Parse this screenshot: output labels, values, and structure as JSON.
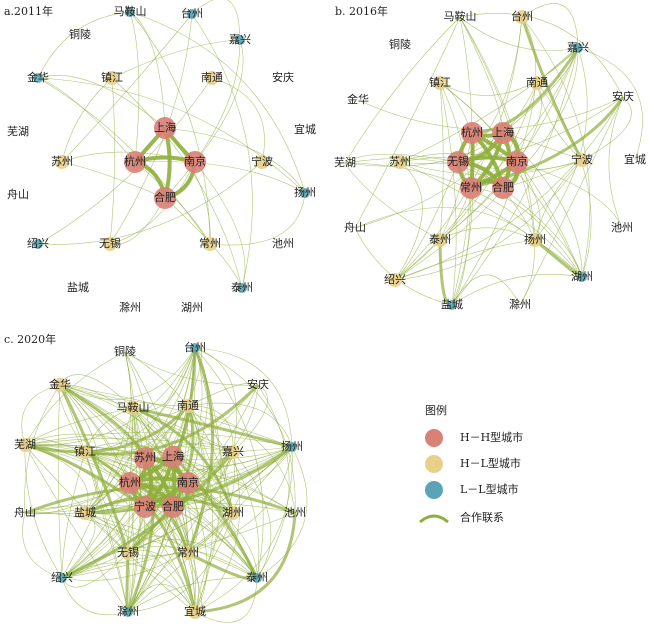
{
  "panels": [
    {
      "title": "a.2011年",
      "nodes": [
        {
          "label": "马鞍山",
          "color": "#5ba3b5"
        },
        {
          "label": "台州",
          "color": "#5ba3b5"
        },
        {
          "label": "铜陵"
        },
        {
          "label": "嘉兴",
          "color": "#5ba3b5"
        },
        {
          "label": "金华",
          "color": "#5ba3b5"
        },
        {
          "label": "镇江",
          "color": "#e8cf8a"
        },
        {
          "label": "南通",
          "color": "#e8cf8a"
        },
        {
          "label": "安庆"
        },
        {
          "label": "上海",
          "color": "#d98077"
        },
        {
          "label": "芜湖"
        },
        {
          "label": "宜城"
        },
        {
          "label": "苏州",
          "color": "#e8cf8a"
        },
        {
          "label": "杭州",
          "color": "#d98077"
        },
        {
          "label": "南京",
          "color": "#d98077"
        },
        {
          "label": "宁波",
          "color": "#e8cf8a"
        },
        {
          "label": "舟山"
        },
        {
          "label": "扬州",
          "color": "#5ba3b5"
        },
        {
          "label": "合肥",
          "color": "#d98077"
        },
        {
          "label": "绍兴",
          "color": "#5ba3b5"
        },
        {
          "label": "无锡",
          "color": "#e8cf8a"
        },
        {
          "label": "常州",
          "color": "#e8cf8a"
        },
        {
          "label": "池州"
        },
        {
          "label": "盐城"
        },
        {
          "label": "泰州",
          "color": "#5ba3b5"
        },
        {
          "label": "滁州"
        },
        {
          "label": "湖州"
        }
      ]
    },
    {
      "title": "b. 2016年",
      "nodes": [
        {
          "label": "马鞍山"
        },
        {
          "label": "台州",
          "color": "#e8cf8a"
        },
        {
          "label": "铜陵"
        },
        {
          "label": "嘉兴",
          "color": "#5ba3b5"
        },
        {
          "label": "镇江",
          "color": "#e8cf8a"
        },
        {
          "label": "南通",
          "color": "#e8cf8a"
        },
        {
          "label": "安庆"
        },
        {
          "label": "金华"
        },
        {
          "label": "杭州",
          "color": "#d98077"
        },
        {
          "label": "上海",
          "color": "#d98077"
        },
        {
          "label": "宁波",
          "color": "#e8cf8a"
        },
        {
          "label": "宜城"
        },
        {
          "label": "芜湖"
        },
        {
          "label": "苏州",
          "color": "#e8cf8a"
        },
        {
          "label": "无锡",
          "color": "#d98077"
        },
        {
          "label": "南京",
          "color": "#d98077"
        },
        {
          "label": "常州",
          "color": "#d98077"
        },
        {
          "label": "合肥",
          "color": "#d98077"
        },
        {
          "label": "舟山"
        },
        {
          "label": "池州"
        },
        {
          "label": "泰州",
          "color": "#e8cf8a"
        },
        {
          "label": "扬州",
          "color": "#e8cf8a"
        },
        {
          "label": "绍兴",
          "color": "#e8cf8a"
        },
        {
          "label": "湖州",
          "color": "#5ba3b5"
        },
        {
          "label": "盐城",
          "color": "#5ba3b5"
        },
        {
          "label": "滁州"
        }
      ]
    },
    {
      "title": "c. 2020年",
      "nodes": [
        {
          "label": "铜陵"
        },
        {
          "label": "台州",
          "color": "#5ba3b5"
        },
        {
          "label": "金华",
          "color": "#e8cf8a"
        },
        {
          "label": "安庆"
        },
        {
          "label": "马鞍山",
          "color": "#e8cf8a"
        },
        {
          "label": "南通",
          "color": "#e8cf8a"
        },
        {
          "label": "芜湖",
          "color": "#e8cf8a"
        },
        {
          "label": "扬州",
          "color": "#5ba3b5"
        },
        {
          "label": "镇江",
          "color": "#e8cf8a"
        },
        {
          "label": "苏州",
          "color": "#d98077"
        },
        {
          "label": "上海",
          "color": "#d98077"
        },
        {
          "label": "嘉兴",
          "color": "#e8cf8a"
        },
        {
          "label": "杭州",
          "color": "#d98077"
        },
        {
          "label": "南京",
          "color": "#d98077"
        },
        {
          "label": "舟山"
        },
        {
          "label": "盐城",
          "color": "#e8cf8a"
        },
        {
          "label": "宁波",
          "color": "#d98077"
        },
        {
          "label": "合肥",
          "color": "#d98077"
        },
        {
          "label": "湖州",
          "color": "#e8cf8a"
        },
        {
          "label": "池州"
        },
        {
          "label": "无锡",
          "color": "#e8cf8a"
        },
        {
          "label": "常州",
          "color": "#e8cf8a"
        },
        {
          "label": "绍兴",
          "color": "#5ba3b5"
        },
        {
          "label": "泰州",
          "color": "#5ba3b5"
        },
        {
          "label": "滁州",
          "color": "#5ba3b5"
        },
        {
          "label": "宜城",
          "color": "#e8cf8a"
        }
      ]
    }
  ],
  "legend": {
    "title": "图例",
    "items": [
      {
        "label": "H－H型城市",
        "color": "#d98077"
      },
      {
        "label": "H－L型城市",
        "color": "#e8cf8a"
      },
      {
        "label": "L－L型城市",
        "color": "#5ba3b5"
      }
    ],
    "link": {
      "label": "合作联系",
      "color": "#8fae3c"
    }
  }
}
